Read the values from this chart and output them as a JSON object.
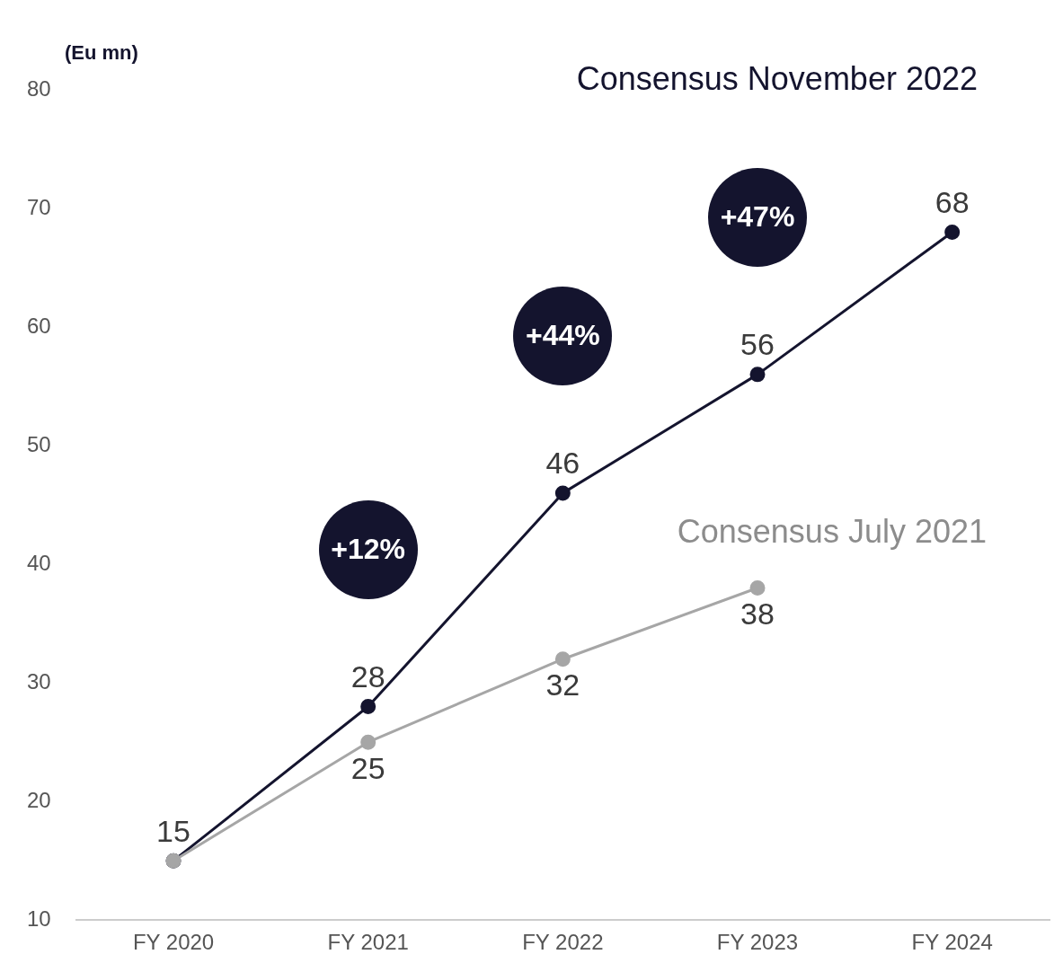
{
  "chart_data": {
    "type": "line",
    "ylabel": "(Eu mn)",
    "categories": [
      "FY 2020",
      "FY 2021",
      "FY 2022",
      "FY 2023",
      "FY 2024"
    ],
    "series": [
      {
        "name": "Consensus November 2022",
        "color": "#14142e",
        "values": [
          15,
          28,
          46,
          56,
          68
        ],
        "value_labels": [
          "15",
          "28",
          "46",
          "56",
          "68"
        ]
      },
      {
        "name": "Consensus July 2021",
        "color": "#a6a6a6",
        "values": [
          15,
          25,
          32,
          38,
          null
        ],
        "value_labels": [
          null,
          "25",
          "32",
          "38",
          null
        ]
      }
    ],
    "annotations": [
      "+12%",
      "+44%",
      "+47%"
    ],
    "ylim": [
      10,
      80
    ],
    "yticks": [
      10,
      20,
      30,
      40,
      50,
      60,
      70,
      80
    ],
    "grid": false,
    "legend": false,
    "marker": "circle",
    "line_style": "solid"
  }
}
